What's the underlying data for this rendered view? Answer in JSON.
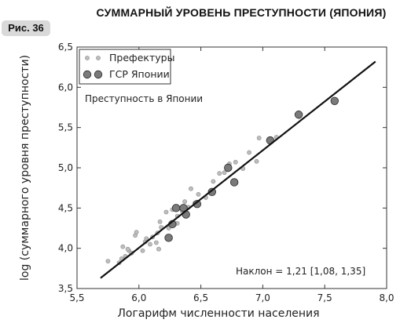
{
  "figure_label": "Рис. 36",
  "chart_data": {
    "type": "scatter",
    "title": "СУММАРНЫЙ УРОВЕНЬ ПРЕСТУПНОСТИ (ЯПОНИЯ)",
    "xlabel": "Логарифм численности населения",
    "ylabel": "log (суммарного уровня преступности)",
    "xlim": [
      5.5,
      8.0
    ],
    "ylim": [
      3.5,
      6.5
    ],
    "xticks": [
      5.5,
      6.0,
      6.5,
      7.0,
      7.5,
      8.0
    ],
    "xtick_labels": [
      "5,5",
      "6,0",
      "6,5",
      "7,0",
      "7,5",
      "8,0"
    ],
    "yticks": [
      3.5,
      4.0,
      4.5,
      5.0,
      5.5,
      6.0,
      6.5
    ],
    "ytick_labels": [
      "3,5",
      "4,0",
      "4,5",
      "5,0",
      "5,5",
      "6,0",
      "6,5"
    ],
    "legend_position": "top-left",
    "annotations": {
      "subtitle": "Преступность в Японии",
      "slope": "Наклон = 1,21 [1,08, 1,35]"
    },
    "series": [
      {
        "name": "Префектуры",
        "marker": "small-circle",
        "color": "#bdbdbd",
        "points": [
          [
            5.75,
            3.84
          ],
          [
            5.84,
            3.82
          ],
          [
            5.86,
            3.87
          ],
          [
            5.89,
            3.9
          ],
          [
            5.87,
            4.02
          ],
          [
            5.92,
            3.97
          ],
          [
            5.94,
            3.94
          ],
          [
            5.97,
            4.16
          ],
          [
            5.98,
            4.2
          ],
          [
            6.03,
            3.97
          ],
          [
            6.05,
            4.08
          ],
          [
            6.06,
            4.12
          ],
          [
            6.09,
            4.05
          ],
          [
            6.11,
            4.14
          ],
          [
            6.14,
            4.07
          ],
          [
            6.16,
            3.99
          ],
          [
            6.15,
            4.19
          ],
          [
            6.18,
            4.26
          ],
          [
            6.22,
            4.45
          ],
          [
            6.27,
            4.48
          ],
          [
            6.31,
            4.4
          ],
          [
            6.35,
            4.46
          ],
          [
            6.37,
            4.58
          ],
          [
            6.4,
            4.51
          ],
          [
            6.42,
            4.74
          ],
          [
            6.45,
            4.56
          ],
          [
            6.48,
            4.67
          ],
          [
            6.54,
            4.63
          ],
          [
            6.6,
            4.83
          ],
          [
            6.65,
            4.93
          ],
          [
            6.69,
            4.94
          ],
          [
            6.73,
            5.05
          ],
          [
            6.78,
            5.07
          ],
          [
            6.84,
            4.99
          ],
          [
            6.89,
            5.19
          ],
          [
            6.95,
            5.08
          ],
          [
            6.97,
            5.37
          ],
          [
            7.11,
            5.38
          ],
          [
            6.24,
            4.25
          ],
          [
            6.31,
            4.31
          ],
          [
            6.17,
            4.33
          ],
          [
            5.91,
            3.99
          ]
        ]
      },
      {
        "name": "ГСР Японии",
        "marker": "large-circle",
        "color": "#7a7a7a",
        "points": [
          [
            6.24,
            4.13
          ],
          [
            6.27,
            4.3
          ],
          [
            6.3,
            4.5
          ],
          [
            6.36,
            4.5
          ],
          [
            6.38,
            4.42
          ],
          [
            6.47,
            4.55
          ],
          [
            6.59,
            4.7
          ],
          [
            6.72,
            5.0
          ],
          [
            6.77,
            4.82
          ],
          [
            7.06,
            5.34
          ],
          [
            7.29,
            5.66
          ],
          [
            7.58,
            5.83
          ]
        ]
      }
    ],
    "fit_line": {
      "x": [
        5.69,
        7.91
      ],
      "y": [
        3.63,
        6.32
      ]
    }
  }
}
